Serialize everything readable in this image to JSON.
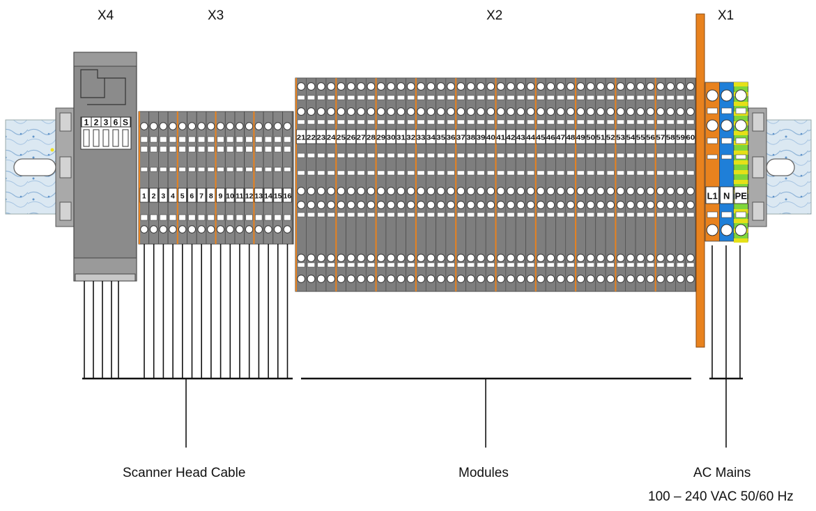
{
  "groups": {
    "x4": "X4",
    "x3": "X3",
    "x2": "X2",
    "x1": "X1"
  },
  "x4_pins": [
    "1",
    "2",
    "3",
    "6",
    "S"
  ],
  "x3_terminals": [
    "1",
    "2",
    "3",
    "4",
    "5",
    "6",
    "7",
    "8",
    "9",
    "10",
    "11",
    "12",
    "13",
    "14",
    "15",
    "16"
  ],
  "x2_terminals": [
    "21",
    "22",
    "23",
    "24",
    "25",
    "26",
    "27",
    "28",
    "29",
    "30",
    "31",
    "32",
    "33",
    "34",
    "35",
    "36",
    "37",
    "38",
    "39",
    "40",
    "41",
    "42",
    "43",
    "44",
    "45",
    "46",
    "47",
    "48",
    "49",
    "50",
    "51",
    "52",
    "53",
    "54",
    "55",
    "56",
    "57",
    "58",
    "59",
    "60"
  ],
  "x1_terminals": [
    "L1",
    "N",
    "PE"
  ],
  "captions": {
    "scanner": "Scanner Head Cable",
    "modules": "Modules",
    "ac_mains": "AC Mains",
    "ac_spec": "100 – 240 VAC 50/60 Hz"
  },
  "colors": {
    "accent_orange": "#e8821e",
    "neutral_blue": "#1f7fd8",
    "pe_green": "#7fd63a",
    "pe_yellow": "#e5e018",
    "terminal_gray": "#8c8c8c",
    "rail_blue": "#cfe0ee"
  }
}
